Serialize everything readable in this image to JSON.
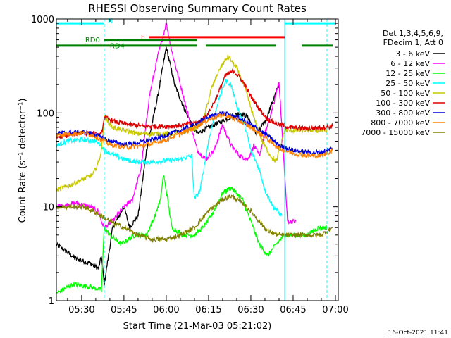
{
  "chart_data": {
    "type": "line",
    "title": "RHESSI Observing Summary Count Rates",
    "xlabel": "Start Time (21-Mar-03 05:21:02)",
    "ylabel": "Count Rate (s⁻¹ detector⁻¹)",
    "x_unit": "UT time",
    "x_range": [
      "05:21:02",
      "07:01:00"
    ],
    "x_ticks": [
      "05:30",
      "05:45",
      "06:00",
      "06:15",
      "06:30",
      "06:45",
      "07:00"
    ],
    "y_scale": "log",
    "y_range": [
      1,
      1000
    ],
    "y_ticks": [
      "1",
      "10",
      "100",
      "1000"
    ],
    "legend_header": [
      "Det 1,3,4,5,6,9,",
      "FDecim 1, Att 0"
    ],
    "legend_position": "right",
    "timestamp": "16-Oct-2021 11:41",
    "flags": [
      {
        "name": "N",
        "label": "N",
        "color": "#00ffff",
        "level": 900,
        "spans": [
          [
            "05:21",
            "05:38"
          ],
          [
            "06:42",
            "07:00"
          ]
        ]
      },
      {
        "name": "F",
        "label": "F",
        "color": "#ff0000",
        "level": 640,
        "spans": [
          [
            "05:54",
            "06:42"
          ]
        ]
      },
      {
        "name": "RD0",
        "label": "RD0",
        "color": "#008000",
        "level": 520,
        "spans": [
          [
            "05:21",
            "06:11"
          ],
          [
            "06:14",
            "06:39"
          ],
          [
            "06:48",
            "06:59"
          ]
        ]
      },
      {
        "name": "RD4",
        "label": "RD4",
        "color": "#008000",
        "level": 600,
        "spans": [
          [
            "05:38",
            "06:11"
          ]
        ]
      }
    ],
    "vlines": [
      {
        "time": "05:38",
        "color": "#00ffff",
        "style": "dashed"
      },
      {
        "time": "06:42",
        "color": "#00ffff",
        "style": "solid"
      },
      {
        "time": "06:57",
        "color": "#00ffff",
        "style": "dashed"
      }
    ],
    "series": [
      {
        "name": "3 - 6 keV",
        "color": "#000000",
        "points": [
          [
            "05:21",
            4
          ],
          [
            "05:28",
            2.8
          ],
          [
            "05:33",
            2.5
          ],
          [
            "05:36",
            2.2
          ],
          [
            "05:37",
            3
          ],
          [
            "05:38",
            1.5
          ],
          [
            "05:41",
            6
          ],
          [
            "05:45",
            10
          ],
          [
            "05:47",
            6
          ],
          [
            "05:50",
            8
          ],
          [
            "05:53",
            40
          ],
          [
            "05:57",
            150
          ],
          [
            "06:00",
            500
          ],
          [
            "06:03",
            200
          ],
          [
            "06:07",
            100
          ],
          [
            "06:11",
            60
          ],
          [
            "06:15",
            70
          ],
          [
            "06:21",
            85
          ],
          [
            "06:26",
            100
          ],
          [
            "06:29",
            90
          ],
          [
            "06:32",
            60
          ],
          [
            "06:35",
            80
          ],
          [
            "06:38",
            140
          ],
          [
            "06:40",
            200
          ]
        ]
      },
      {
        "name": "6 - 12 keV",
        "color": "#ff00ff",
        "points": [
          [
            "05:21",
            10
          ],
          [
            "05:28",
            11
          ],
          [
            "05:33",
            10
          ],
          [
            "05:36",
            9
          ],
          [
            "05:37",
            7
          ],
          [
            "05:38",
            6
          ],
          [
            "05:41",
            7
          ],
          [
            "05:45",
            10
          ],
          [
            "05:48",
            12
          ],
          [
            "05:51",
            25
          ],
          [
            "05:54",
            150
          ],
          [
            "05:57",
            400
          ],
          [
            "06:00",
            900
          ],
          [
            "06:02",
            450
          ],
          [
            "06:05",
            200
          ],
          [
            "06:08",
            90
          ],
          [
            "06:11",
            40
          ],
          [
            "06:14",
            32
          ],
          [
            "06:17",
            40
          ],
          [
            "06:20",
            75
          ],
          [
            "06:23",
            45
          ],
          [
            "06:26",
            35
          ],
          [
            "06:29",
            32
          ],
          [
            "06:31",
            45
          ],
          [
            "06:33",
            35
          ],
          [
            "06:35",
            60
          ],
          [
            "06:38",
            120
          ],
          [
            "06:40",
            220
          ],
          [
            "06:43",
            7
          ],
          [
            "06:46",
            7
          ]
        ]
      },
      {
        "name": "12 - 25 keV",
        "color": "#00ff00",
        "points": [
          [
            "05:21",
            1.2
          ],
          [
            "05:27",
            1.5
          ],
          [
            "05:33",
            1.4
          ],
          [
            "05:37",
            1.3
          ],
          [
            "05:38",
            6
          ],
          [
            "05:40",
            5
          ],
          [
            "05:44",
            4
          ],
          [
            "05:49",
            5
          ],
          [
            "05:53",
            5
          ],
          [
            "05:56",
            8
          ],
          [
            "05:58",
            12
          ],
          [
            "05:59",
            22
          ],
          [
            "06:00",
            15
          ],
          [
            "06:02",
            6
          ],
          [
            "06:06",
            5
          ],
          [
            "06:10",
            5
          ],
          [
            "06:13",
            6
          ],
          [
            "06:16",
            8
          ],
          [
            "06:20",
            14
          ],
          [
            "06:23",
            16
          ],
          [
            "06:27",
            12
          ],
          [
            "06:30",
            7
          ],
          [
            "06:33",
            4
          ],
          [
            "06:36",
            3
          ],
          [
            "06:39",
            4
          ],
          [
            "06:42",
            5
          ],
          [
            "06:46",
            5
          ],
          [
            "06:50",
            5
          ],
          [
            "06:54",
            6
          ],
          [
            "06:57",
            6
          ]
        ]
      },
      {
        "name": "25 - 50 keV",
        "color": "#00ffff",
        "points": [
          [
            "05:21",
            45
          ],
          [
            "05:25",
            50
          ],
          [
            "05:30",
            52
          ],
          [
            "05:35",
            50
          ],
          [
            "05:37",
            45
          ],
          [
            "05:38",
            40
          ],
          [
            "05:41",
            36
          ],
          [
            "05:45",
            32
          ],
          [
            "05:50",
            30
          ],
          [
            "05:55",
            30
          ],
          [
            "06:00",
            31
          ],
          [
            "06:05",
            32
          ],
          [
            "06:09",
            35
          ],
          [
            "06:10",
            12
          ],
          [
            "06:12",
            15
          ],
          [
            "06:15",
            50
          ],
          [
            "06:18",
            120
          ],
          [
            "06:21",
            220
          ],
          [
            "06:23",
            200
          ],
          [
            "06:25",
            120
          ],
          [
            "06:28",
            70
          ],
          [
            "06:30",
            40
          ],
          [
            "06:33",
            25
          ],
          [
            "06:35",
            15
          ],
          [
            "06:38",
            10
          ],
          [
            "06:41",
            8
          ]
        ]
      },
      {
        "name": "50 - 100 keV",
        "color": "#c8c800",
        "points": [
          [
            "05:21",
            15
          ],
          [
            "05:26",
            17
          ],
          [
            "05:31",
            20
          ],
          [
            "05:34",
            22
          ],
          [
            "05:36",
            30
          ],
          [
            "05:37",
            40
          ],
          [
            "05:38",
            90
          ],
          [
            "05:41",
            70
          ],
          [
            "05:45",
            65
          ],
          [
            "05:50",
            60
          ],
          [
            "05:55",
            60
          ],
          [
            "06:00",
            60
          ],
          [
            "06:05",
            62
          ],
          [
            "06:10",
            68
          ],
          [
            "06:13",
            80
          ],
          [
            "06:16",
            180
          ],
          [
            "06:19",
            300
          ],
          [
            "06:22",
            400
          ],
          [
            "06:25",
            300
          ],
          [
            "06:28",
            180
          ],
          [
            "06:31",
            90
          ],
          [
            "06:34",
            50
          ],
          [
            "06:37",
            35
          ],
          [
            "06:39",
            30
          ],
          [
            "06:42",
            65
          ],
          [
            "06:47",
            65
          ],
          [
            "06:52",
            65
          ],
          [
            "06:57",
            65
          ]
        ]
      },
      {
        "name": "100 - 300 keV",
        "color": "#dd0000",
        "points": [
          [
            "05:21",
            55
          ],
          [
            "05:26",
            58
          ],
          [
            "05:30",
            62
          ],
          [
            "05:34",
            60
          ],
          [
            "05:37",
            58
          ],
          [
            "05:38",
            90
          ],
          [
            "05:42",
            80
          ],
          [
            "05:47",
            75
          ],
          [
            "05:52",
            72
          ],
          [
            "05:57",
            72
          ],
          [
            "06:02",
            72
          ],
          [
            "06:07",
            75
          ],
          [
            "06:12",
            80
          ],
          [
            "06:15",
            100
          ],
          [
            "06:18",
            150
          ],
          [
            "06:21",
            250
          ],
          [
            "06:24",
            280
          ],
          [
            "06:27",
            220
          ],
          [
            "06:30",
            150
          ],
          [
            "06:33",
            110
          ],
          [
            "06:36",
            85
          ],
          [
            "06:40",
            75
          ],
          [
            "06:44",
            70
          ],
          [
            "06:50",
            68
          ],
          [
            "06:55",
            70
          ],
          [
            "06:59",
            72
          ]
        ]
      },
      {
        "name": "300 - 800 keV",
        "color": "#0000dd",
        "points": [
          [
            "05:21",
            60
          ],
          [
            "05:26",
            62
          ],
          [
            "05:31",
            62
          ],
          [
            "05:34",
            60
          ],
          [
            "05:37",
            55
          ],
          [
            "05:40",
            50
          ],
          [
            "05:45",
            46
          ],
          [
            "05:50",
            48
          ],
          [
            "05:55",
            52
          ],
          [
            "06:00",
            58
          ],
          [
            "06:05",
            65
          ],
          [
            "06:10",
            75
          ],
          [
            "06:15",
            90
          ],
          [
            "06:20",
            100
          ],
          [
            "06:25",
            90
          ],
          [
            "06:30",
            75
          ],
          [
            "06:35",
            60
          ],
          [
            "06:40",
            45
          ],
          [
            "06:45",
            40
          ],
          [
            "06:50",
            38
          ],
          [
            "06:55",
            38
          ],
          [
            "06:59",
            42
          ]
        ]
      },
      {
        "name": "800 - 7000 keV",
        "color": "#ff8000",
        "points": [
          [
            "05:21",
            58
          ],
          [
            "05:26",
            60
          ],
          [
            "05:31",
            61
          ],
          [
            "05:34",
            58
          ],
          [
            "05:37",
            52
          ],
          [
            "05:40",
            46
          ],
          [
            "05:45",
            43
          ],
          [
            "05:50",
            44
          ],
          [
            "05:55",
            47
          ],
          [
            "06:00",
            52
          ],
          [
            "06:05",
            60
          ],
          [
            "06:10",
            70
          ],
          [
            "06:15",
            85
          ],
          [
            "06:20",
            95
          ],
          [
            "06:25",
            85
          ],
          [
            "06:30",
            70
          ],
          [
            "06:35",
            55
          ],
          [
            "06:40",
            42
          ],
          [
            "06:45",
            37
          ],
          [
            "06:50",
            35
          ],
          [
            "06:55",
            35
          ],
          [
            "06:59",
            40
          ]
        ]
      },
      {
        "name": "7000 - 15000 keV",
        "color": "#808000",
        "points": [
          [
            "05:21",
            10
          ],
          [
            "05:26",
            10
          ],
          [
            "05:31",
            10
          ],
          [
            "05:34",
            9
          ],
          [
            "05:37",
            8
          ],
          [
            "05:40",
            7
          ],
          [
            "05:45",
            6
          ],
          [
            "05:50",
            5
          ],
          [
            "05:55",
            4.5
          ],
          [
            "06:00",
            4.5
          ],
          [
            "06:05",
            5
          ],
          [
            "06:10",
            6
          ],
          [
            "06:15",
            9
          ],
          [
            "06:20",
            12
          ],
          [
            "06:23",
            13
          ],
          [
            "06:27",
            11
          ],
          [
            "06:30",
            9
          ],
          [
            "06:33",
            7
          ],
          [
            "06:36",
            5.5
          ],
          [
            "06:40",
            5
          ],
          [
            "06:45",
            5
          ],
          [
            "06:50",
            5
          ],
          [
            "06:55",
            5
          ],
          [
            "06:59",
            6
          ]
        ]
      }
    ]
  }
}
